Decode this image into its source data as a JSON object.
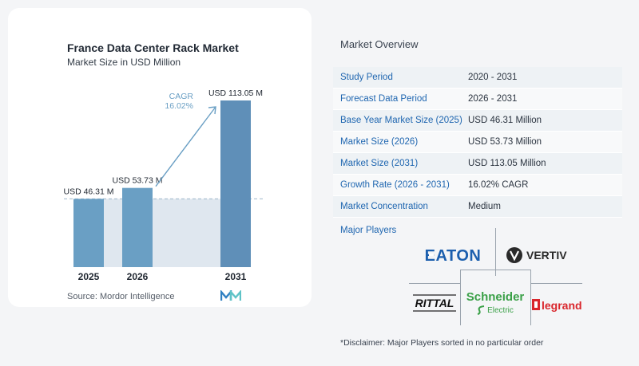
{
  "chart_data": {
    "type": "bar",
    "title": "France Data Center Rack Market",
    "subtitle": "Market Size in USD Million",
    "categories": [
      "2025",
      "2026",
      "2031"
    ],
    "values": [
      46.31,
      53.73,
      113.05
    ],
    "data_labels": [
      "USD 46.31 M",
      "USD 53.73 M",
      "USD 113.05 M"
    ],
    "cagr_label": "CAGR",
    "cagr_value": "16.02%",
    "colors": {
      "bar": "#6a9fc4",
      "bar_highlight": "#5f8fb8",
      "shade": "#dfe7ef",
      "arrow": "#6a9fc4",
      "cagr_text": "#6a9fc4"
    }
  },
  "source": "Source:  Mordor Intelligence",
  "overview": {
    "title": "Market Overview",
    "rows": [
      {
        "label": "Study Period",
        "value": "2020 - 2031"
      },
      {
        "label": "Forecast Data Period",
        "value": "2026 - 2031"
      },
      {
        "label": "Base Year Market Size (2025)",
        "value": "USD 46.31 Million"
      },
      {
        "label": "Market Size (2026)",
        "value": "USD 53.73 Million"
      },
      {
        "label": "Market Size (2031)",
        "value": "USD 113.05 Million"
      },
      {
        "label": "Growth Rate (2026 - 2031)",
        "value": "16.02% CAGR"
      },
      {
        "label": "Market Concentration",
        "value": "Medium"
      }
    ]
  },
  "players": {
    "title": "Major Players",
    "logos": [
      "EATON",
      "VERTIV",
      "RITTAL",
      "Schneider Electric",
      "legrand"
    ],
    "schneider_line1": "Schneider",
    "schneider_line2": "Electric"
  },
  "disclaimer": "*Disclaimer: Major Players sorted in no particular order"
}
